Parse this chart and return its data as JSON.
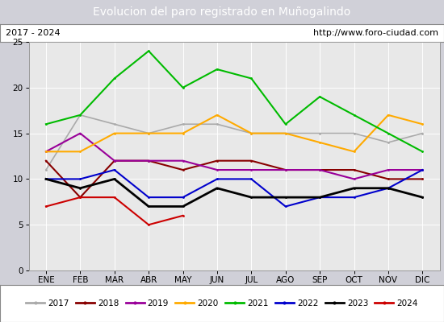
{
  "title": "Evolucion del paro registrado en Muñogalindo",
  "subtitle_left": "2017 - 2024",
  "subtitle_right": "http://www.foro-ciudad.com",
  "months": [
    "ENE",
    "FEB",
    "MAR",
    "ABR",
    "MAY",
    "JUN",
    "JUL",
    "AGO",
    "SEP",
    "OCT",
    "NOV",
    "DIC"
  ],
  "ylim": [
    0,
    25
  ],
  "yticks": [
    0,
    5,
    10,
    15,
    20,
    25
  ],
  "series": {
    "2017": {
      "values": [
        11,
        17,
        16,
        15,
        16,
        16,
        15,
        15,
        15,
        15,
        14,
        15
      ],
      "color": "#aaaaaa",
      "lw": 1.2
    },
    "2018": {
      "values": [
        12,
        8,
        12,
        12,
        11,
        12,
        12,
        11,
        11,
        11,
        10,
        10
      ],
      "color": "#880000",
      "lw": 1.5
    },
    "2019": {
      "values": [
        13,
        15,
        12,
        12,
        12,
        11,
        11,
        11,
        11,
        10,
        11,
        11
      ],
      "color": "#990099",
      "lw": 1.5
    },
    "2020": {
      "values": [
        13,
        13,
        15,
        15,
        15,
        17,
        15,
        15,
        14,
        13,
        17,
        16
      ],
      "color": "#ffaa00",
      "lw": 1.5
    },
    "2021": {
      "values": [
        16,
        17,
        21,
        24,
        20,
        22,
        21,
        16,
        19,
        17,
        15,
        13
      ],
      "color": "#00bb00",
      "lw": 1.5
    },
    "2022": {
      "values": [
        10,
        10,
        11,
        8,
        8,
        10,
        10,
        7,
        8,
        8,
        9,
        11
      ],
      "color": "#0000cc",
      "lw": 1.5
    },
    "2023": {
      "values": [
        10,
        9,
        10,
        7,
        7,
        9,
        8,
        8,
        8,
        9,
        9,
        8
      ],
      "color": "#000000",
      "lw": 2.0
    },
    "2024": {
      "values": [
        7,
        8,
        8,
        5,
        6,
        null,
        null,
        null,
        null,
        null,
        null,
        null
      ],
      "color": "#cc0000",
      "lw": 1.5
    }
  },
  "title_bg": "#4d8dc9",
  "title_color": "white",
  "title_fontsize": 10,
  "sub_fontsize": 8,
  "legend_fontsize": 7.5,
  "axis_fontsize": 7.5,
  "plot_bg": "#e8e8e8",
  "outer_bg": "#d0d0d8"
}
